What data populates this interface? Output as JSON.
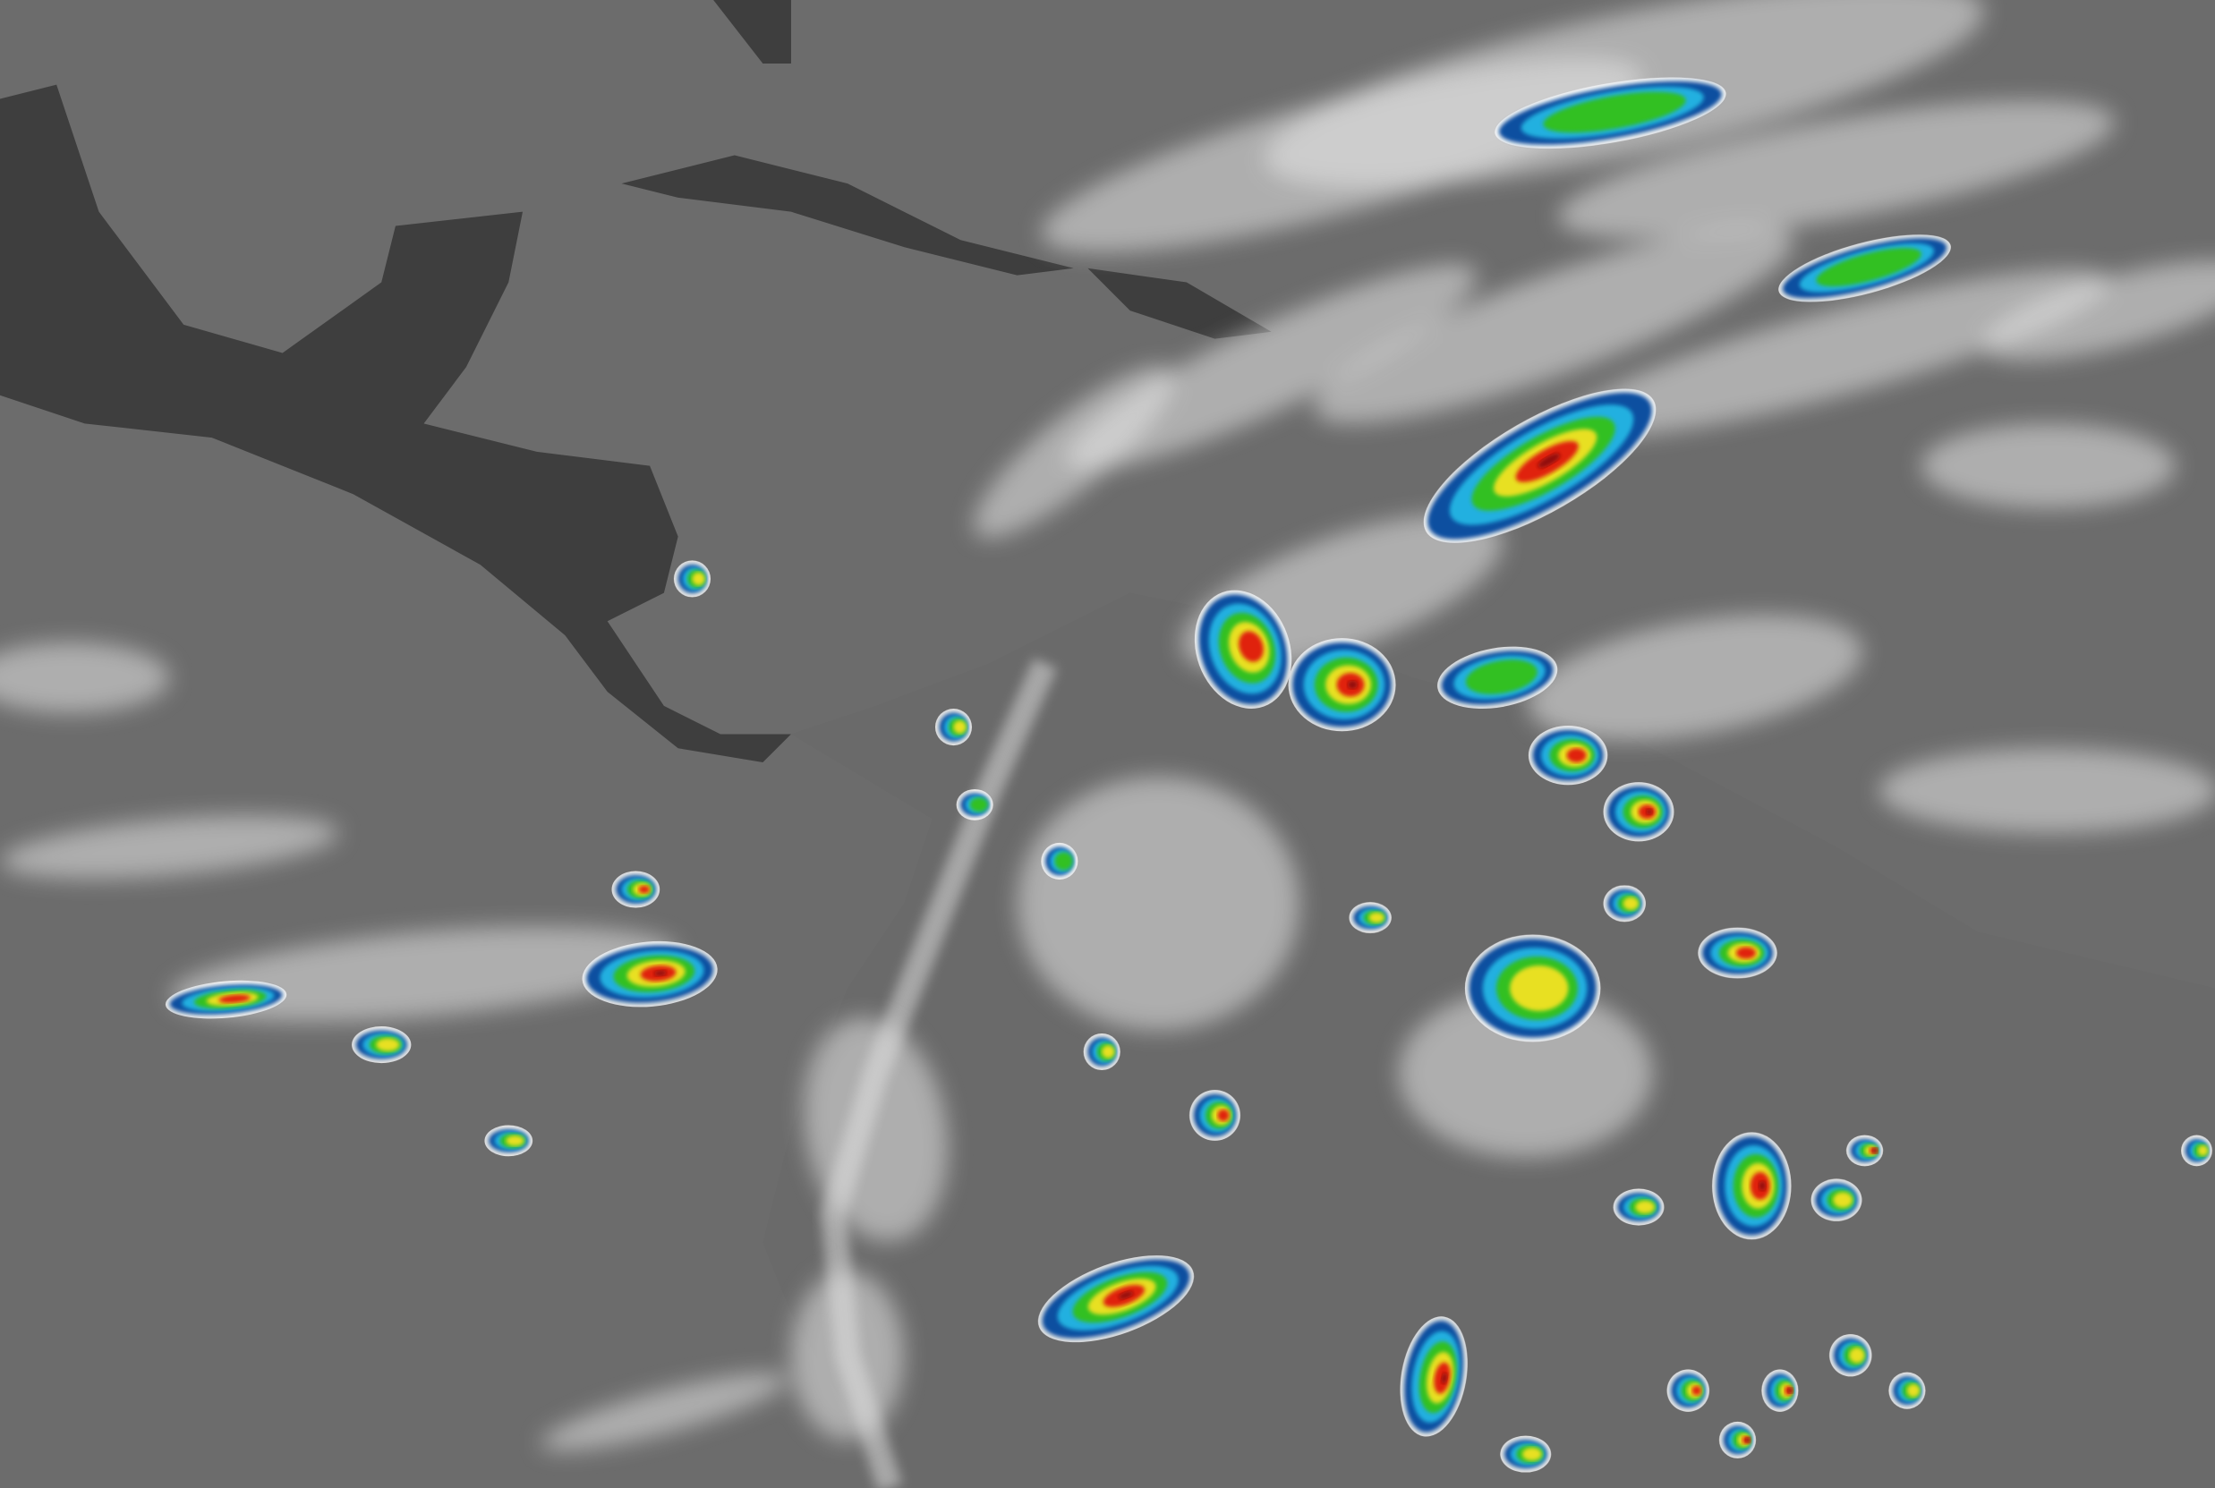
{
  "image": {
    "kind": "infrared satellite imagery",
    "colors": {
      "ocean": "#6c6c6c",
      "land": "#3e3e3e",
      "cloud": "#e6e6e6",
      "cold_blue": "#1050a0",
      "cyan": "#20b0e0",
      "green": "#30c020",
      "yellow": "#e8e020",
      "red": "#e02010",
      "darkred": "#901010"
    }
  }
}
